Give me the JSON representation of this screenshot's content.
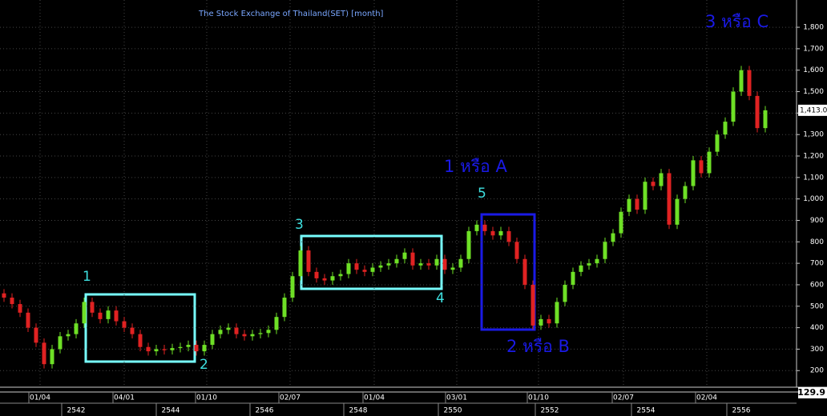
{
  "chart_data": {
    "type": "candlestick",
    "title": "The Stock Exchange of Thailand(SET) [month]",
    "open": [
      560,
      540,
      510,
      470,
      400,
      330,
      230,
      300,
      360,
      370,
      420,
      520,
      470,
      440,
      480,
      430,
      400,
      370,
      310,
      290,
      300,
      295,
      305,
      310,
      320,
      290,
      320,
      370,
      390,
      400,
      370,
      360,
      370,
      375,
      390,
      450,
      540,
      640,
      760,
      660,
      630,
      620,
      640,
      650,
      700,
      670,
      660,
      680,
      690,
      700,
      720,
      750,
      690,
      700,
      690,
      720,
      670,
      680,
      720,
      850,
      880,
      850,
      830,
      850,
      800,
      720,
      600,
      410,
      440,
      420,
      520,
      600,
      660,
      690,
      700,
      720,
      800,
      840,
      940,
      1000,
      950,
      1080,
      1060,
      1120,
      880,
      1000,
      1060,
      1180,
      1120,
      1220,
      1300,
      1360,
      1500,
      1600,
      1480,
      1330
    ],
    "high": [
      580,
      560,
      530,
      490,
      420,
      350,
      320,
      380,
      390,
      440,
      540,
      540,
      490,
      500,
      500,
      450,
      420,
      390,
      330,
      320,
      320,
      325,
      330,
      340,
      340,
      340,
      390,
      410,
      420,
      420,
      390,
      390,
      395,
      410,
      470,
      560,
      660,
      780,
      780,
      680,
      650,
      660,
      670,
      720,
      720,
      690,
      700,
      710,
      720,
      740,
      770,
      770,
      720,
      720,
      740,
      740,
      700,
      740,
      870,
      900,
      900,
      870,
      870,
      870,
      820,
      740,
      620,
      460,
      460,
      540,
      620,
      680,
      710,
      720,
      740,
      820,
      860,
      960,
      1020,
      1020,
      1100,
      1100,
      1140,
      1140,
      1020,
      1080,
      1200,
      1200,
      1240,
      1320,
      1380,
      1520,
      1620,
      1620,
      1500,
      1433
    ],
    "low": [
      520,
      490,
      450,
      380,
      310,
      210,
      210,
      280,
      340,
      350,
      400,
      450,
      420,
      420,
      410,
      380,
      350,
      290,
      270,
      270,
      275,
      275,
      285,
      290,
      270,
      270,
      300,
      350,
      370,
      350,
      340,
      340,
      350,
      355,
      370,
      430,
      520,
      620,
      640,
      610,
      600,
      600,
      620,
      630,
      650,
      640,
      640,
      660,
      670,
      680,
      700,
      670,
      670,
      670,
      670,
      650,
      650,
      660,
      700,
      830,
      830,
      810,
      810,
      780,
      700,
      580,
      390,
      390,
      400,
      400,
      500,
      580,
      640,
      670,
      680,
      700,
      780,
      820,
      920,
      930,
      930,
      1040,
      1040,
      860,
      860,
      980,
      1040,
      1100,
      1100,
      1200,
      1280,
      1340,
      1480,
      1460,
      1310,
      1310
    ],
    "close": [
      540,
      510,
      470,
      400,
      330,
      230,
      300,
      360,
      370,
      420,
      520,
      470,
      440,
      480,
      430,
      400,
      370,
      310,
      290,
      300,
      295,
      305,
      310,
      320,
      290,
      320,
      370,
      390,
      400,
      370,
      360,
      370,
      375,
      390,
      450,
      540,
      640,
      760,
      660,
      630,
      620,
      640,
      650,
      700,
      670,
      660,
      680,
      690,
      700,
      720,
      750,
      690,
      700,
      690,
      720,
      670,
      680,
      720,
      850,
      880,
      850,
      830,
      850,
      800,
      720,
      600,
      410,
      440,
      420,
      520,
      600,
      660,
      690,
      700,
      720,
      800,
      840,
      940,
      1000,
      950,
      1080,
      1060,
      1120,
      880,
      1000,
      1060,
      1180,
      1120,
      1220,
      1300,
      1360,
      1500,
      1600,
      1480,
      1330,
      1413
    ],
    "up_color": "#6ee026",
    "down_color": "#e02222",
    "ylim": [
      145,
      1845
    ],
    "yticks": [
      200,
      300,
      400,
      500,
      600,
      700,
      800,
      900,
      {
        "value": 1000,
        "label": "1,000"
      },
      {
        "value": 1100,
        "label": "1,100"
      },
      {
        "value": 1200,
        "label": "1,200"
      },
      {
        "value": 1300,
        "label": "1,300"
      },
      {
        "value": 1400,
        "label": "1,400"
      },
      {
        "value": 1500,
        "label": "1,500"
      },
      {
        "value": 1600,
        "label": "1,600"
      },
      {
        "value": 1700,
        "label": "1,700"
      },
      {
        "value": 1800,
        "label": "1,800"
      }
    ],
    "last_price": {
      "value": 1413,
      "label": "1,413.0"
    },
    "lower_value": "129.9",
    "date_labels": [
      "01/04",
      "04/01",
      "01/10",
      "02/07",
      "01/04",
      "03/01",
      "01/10",
      "02/07",
      "02/04"
    ],
    "year_labels": [
      "2542",
      "2544",
      "2546",
      "2548",
      "2550",
      "2552",
      "2554",
      "2556"
    ],
    "wave_labels": [
      "1",
      "2",
      "3",
      "4",
      "5"
    ],
    "wave_names": [
      "1 หรือ A",
      "2 หรือ B",
      "3 หรือ C"
    ],
    "grid": true
  }
}
